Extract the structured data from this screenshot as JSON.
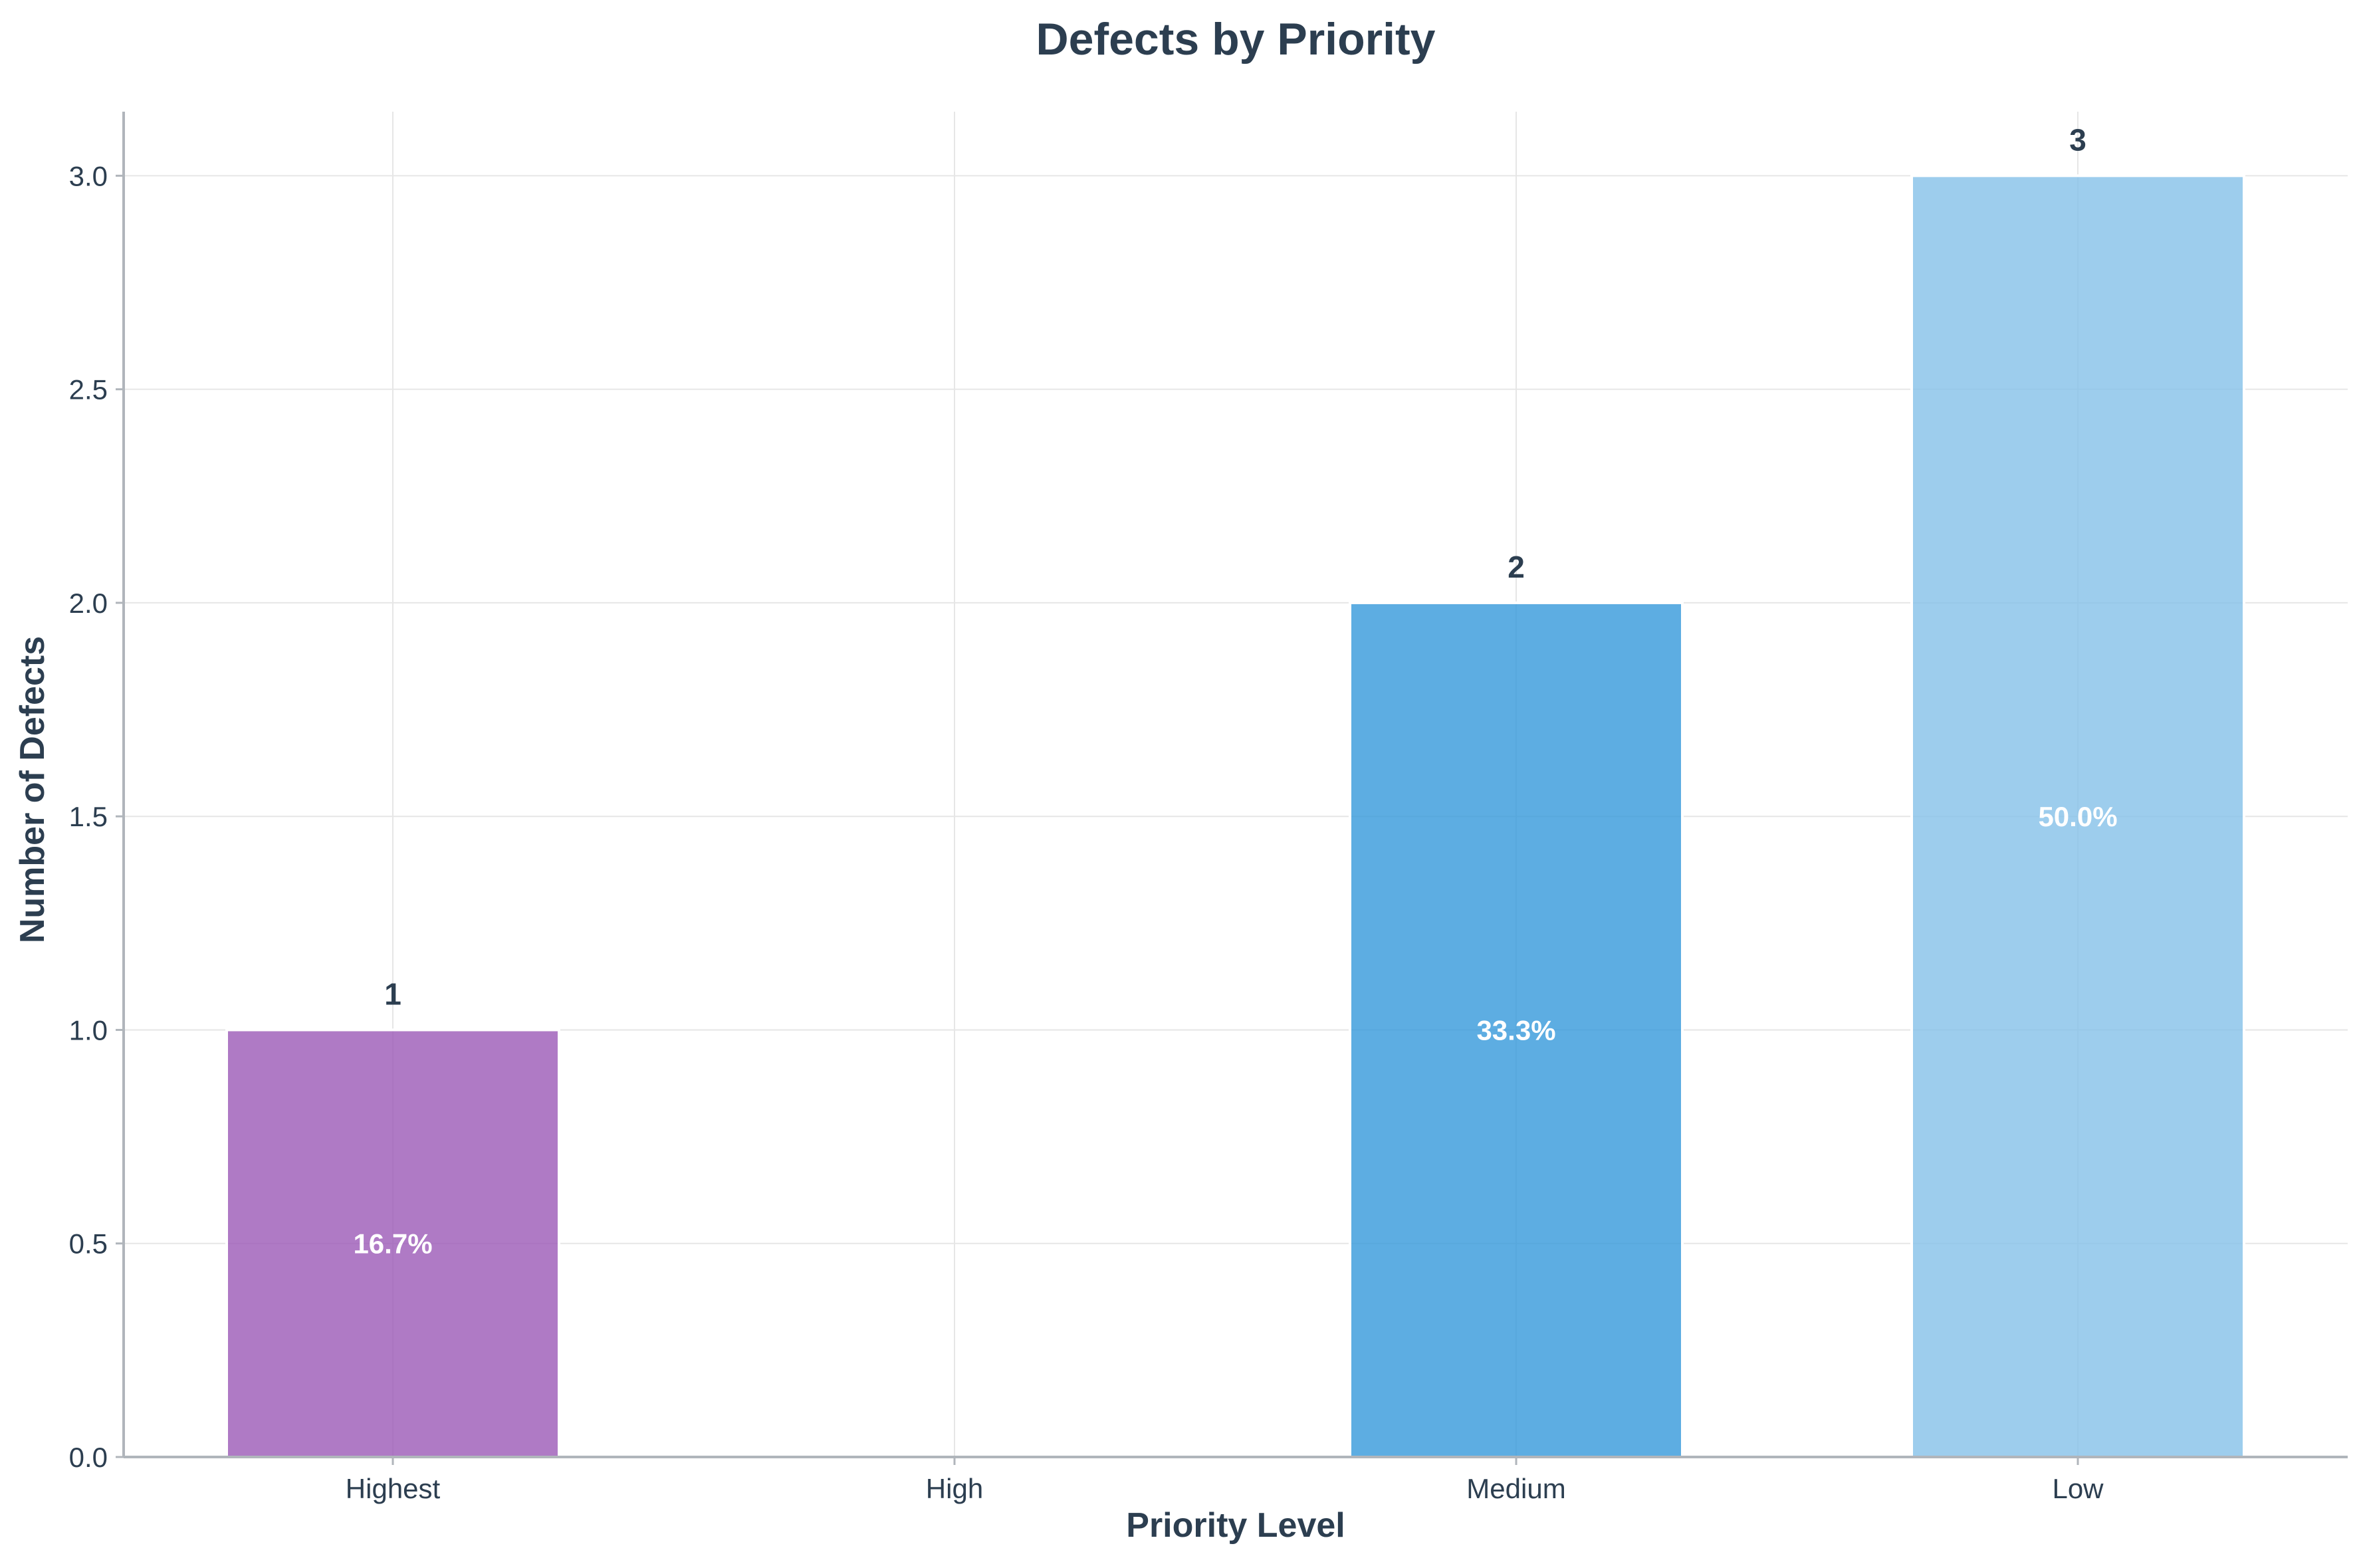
{
  "chart_data": {
    "type": "bar",
    "title": "Defects by Priority",
    "xlabel": "Priority Level",
    "ylabel": "Number of Defects",
    "categories": [
      "Highest",
      "High",
      "Medium",
      "Low"
    ],
    "values": [
      1,
      0,
      2,
      3
    ],
    "value_labels": [
      "1",
      "",
      "2",
      "3"
    ],
    "percent_labels": [
      "16.7%",
      "",
      "33.3%",
      "50.0%"
    ],
    "colors": [
      "#9b59b6",
      "#e74c3c",
      "#3498db",
      "#85c1e9"
    ],
    "ylim": [
      0,
      3.15
    ],
    "yticks": [
      0.0,
      0.5,
      1.0,
      1.5,
      2.0,
      2.5,
      3.0
    ],
    "ytick_labels": [
      "0.0",
      "0.5",
      "1.0",
      "1.5",
      "2.0",
      "2.5",
      "3.0"
    ],
    "grid": true,
    "legend": "none"
  }
}
